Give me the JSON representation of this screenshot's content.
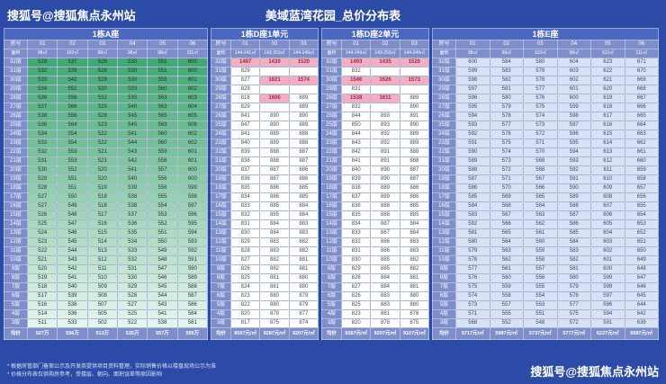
{
  "page": {
    "watermark_top": "搜狐号@搜狐焦点永州站",
    "title": "美域蓝湾花园_总价分布表",
    "watermark_bottom": "搜狐号@搜狐焦点永州站",
    "notes": [
      "* 根据房管部门备案公示及开发商提供项目资料整理，实际销售价格以楼盘现场公示为准",
      "* 价格分布表仅供购房参考，受楼层、朝向、面积误差等原因影响"
    ]
  },
  "theme": {
    "bg": "#2c4ba6",
    "header-bg": "#7d8ecb",
    "title-bar-bg": "#4b67c0",
    "grid-line": "rgba(255,255,255,0.6)"
  },
  "labels": {
    "room": "房号",
    "area": "面积",
    "avg": "均价"
  },
  "floors": [
    "32层",
    "31层",
    "30层",
    "29层",
    "28层",
    "27层",
    "26层",
    "25层",
    "24层",
    "23层",
    "22层",
    "21层",
    "20层",
    "19层",
    "18层",
    "17层",
    "16层",
    "15层",
    "14层",
    "13层",
    "12层",
    "11层",
    "10层",
    "9层",
    "8层",
    "7层",
    "6层",
    "5层",
    "4层",
    "3层"
  ],
  "chart_data": [
    {
      "type": "table",
      "id": "a",
      "title": "1栋A座",
      "columns": [
        "01",
        "02",
        "03",
        "04",
        "05",
        "06"
      ],
      "areas": [
        "98㎡",
        "102㎡",
        "98㎡",
        "98㎡",
        "98㎡",
        "111㎡"
      ],
      "style": "green-scale",
      "scale_from": "#43a873",
      "scale_to": "#e6f5ec",
      "values": [
        [
          529,
          537,
          528,
          530,
          551,
          600
        ],
        [
          532,
          539,
          528,
          530,
          551,
          600
        ],
        [
          533,
          542,
          528,
          530,
          555,
          601
        ],
        [
          534,
          552,
          530,
          533,
          560,
          602
        ],
        [
          536,
          556,
          532,
          535,
          563,
          603
        ],
        [
          537,
          566,
          525,
          540,
          563,
          604
        ],
        [
          538,
          556,
          528,
          545,
          565,
          605
        ],
        [
          536,
          564,
          523,
          545,
          563,
          608
        ],
        [
          534,
          554,
          522,
          541,
          560,
          602
        ],
        [
          533,
          554,
          522,
          544,
          560,
          602
        ],
        [
          532,
          553,
          521,
          543,
          559,
          601
        ],
        [
          531,
          553,
          521,
          542,
          558,
          601
        ],
        [
          530,
          552,
          520,
          541,
          557,
          600
        ],
        [
          529,
          551,
          520,
          540,
          556,
          600
        ],
        [
          528,
          551,
          519,
          539,
          556,
          599
        ],
        [
          527,
          550,
          518,
          538,
          555,
          598
        ],
        [
          527,
          549,
          518,
          538,
          554,
          597
        ],
        [
          526,
          548,
          517,
          537,
          553,
          596
        ],
        [
          525,
          547,
          516,
          536,
          552,
          595
        ],
        [
          524,
          546,
          515,
          535,
          551,
          594
        ],
        [
          523,
          545,
          514,
          534,
          550,
          593
        ],
        [
          522,
          544,
          513,
          533,
          549,
          592
        ],
        [
          521,
          543,
          512,
          532,
          548,
          591
        ],
        [
          520,
          542,
          511,
          531,
          547,
          590
        ],
        [
          519,
          541,
          510,
          530,
          546,
          589
        ],
        [
          518,
          540,
          509,
          529,
          545,
          588
        ],
        [
          517,
          539,
          508,
          528,
          544,
          587
        ],
        [
          516,
          538,
          507,
          527,
          543,
          586
        ],
        [
          514,
          536,
          505,
          525,
          541,
          584
        ],
        [
          511,
          533,
          502,
          522,
          538,
          581
        ]
      ],
      "avg": [
        "527万",
        "556万",
        "513万",
        "535万",
        "557万",
        "595万"
      ]
    },
    {
      "type": "table",
      "id": "d1",
      "title": "1栋D座1单元",
      "columns": [
        "01",
        "02",
        "03"
      ],
      "areas": [
        "144-241㎡",
        "143-253㎡",
        "144-249㎡"
      ],
      "style": "pink-highlight",
      "highlight_threshold": 1000,
      "highlight_color": "#f3aec2",
      "highlight_text_color": "#9c2b4e",
      "values": [
        [
          1487,
          1430,
          1520
        ],
        [
          829,
          "",
          ""
        ],
        [
          827,
          1621,
          1574
        ],
        [
          828,
          "",
          ""
        ],
        [
          818,
          1606,
          889
        ],
        [
          829,
          "",
          889
        ],
        [
          841,
          890,
          890
        ],
        [
          847,
          890,
          889
        ],
        [
          841,
          889,
          888
        ],
        [
          840,
          889,
          888
        ],
        [
          839,
          888,
          887
        ],
        [
          838,
          888,
          887
        ],
        [
          837,
          887,
          886
        ],
        [
          836,
          887,
          886
        ],
        [
          835,
          886,
          885
        ],
        [
          834,
          886,
          885
        ],
        [
          833,
          885,
          884
        ],
        [
          832,
          885,
          884
        ],
        [
          831,
          884,
          883
        ],
        [
          830,
          884,
          883
        ],
        [
          829,
          883,
          882
        ],
        [
          828,
          883,
          882
        ],
        [
          827,
          882,
          881
        ],
        [
          826,
          882,
          881
        ],
        [
          825,
          881,
          880
        ],
        [
          824,
          881,
          880
        ],
        [
          823,
          880,
          879
        ],
        [
          822,
          880,
          879
        ],
        [
          820,
          878,
          877
        ],
        [
          817,
          875,
          874
        ]
      ],
      "avg": [
        "8507元/㎡",
        "9287元/㎡",
        "9207元/㎡"
      ]
    },
    {
      "type": "table",
      "id": "d2",
      "title": "1栋D座2单元",
      "columns": [
        "01",
        "02",
        "03"
      ],
      "areas": [
        "144-249㎡",
        "143-253㎡",
        "144-249㎡"
      ],
      "style": "pink-highlight",
      "highlight_threshold": 1000,
      "highlight_color": "#f3aec2",
      "highlight_text_color": "#9c2b4e",
      "values": [
        [
          1493,
          1435,
          1520
        ],
        [
          832,
          "",
          ""
        ],
        [
          1546,
          1626,
          1573
        ],
        [
          831,
          "",
          ""
        ],
        [
          1538,
          1611,
          889
        ],
        [
          832,
          "",
          890
        ],
        [
          844,
          893,
          891
        ],
        [
          850,
          893,
          890
        ],
        [
          844,
          892,
          889
        ],
        [
          843,
          892,
          889
        ],
        [
          842,
          891,
          888
        ],
        [
          841,
          891,
          888
        ],
        [
          840,
          890,
          887
        ],
        [
          839,
          890,
          887
        ],
        [
          838,
          889,
          886
        ],
        [
          837,
          889,
          886
        ],
        [
          836,
          888,
          885
        ],
        [
          835,
          888,
          885
        ],
        [
          834,
          887,
          884
        ],
        [
          833,
          887,
          884
        ],
        [
          832,
          886,
          883
        ],
        [
          831,
          886,
          883
        ],
        [
          830,
          885,
          882
        ],
        [
          829,
          885,
          882
        ],
        [
          828,
          884,
          881
        ],
        [
          827,
          884,
          881
        ],
        [
          826,
          883,
          880
        ],
        [
          825,
          883,
          880
        ],
        [
          823,
          881,
          878
        ],
        [
          820,
          878,
          875
        ]
      ],
      "avg": [
        "9287元/㎡",
        "9207元/㎡",
        "9107元/㎡"
      ]
    },
    {
      "type": "table",
      "id": "e",
      "title": "1栋E座",
      "columns": [
        "01",
        "02",
        "03",
        "04",
        "05",
        "06"
      ],
      "areas": [
        "98㎡",
        "98㎡",
        "102㎡",
        "98㎡",
        "102㎡",
        "111㎡"
      ],
      "style": "flat",
      "cell_color": "#d8e2f4",
      "cell_text_color": "#3a4a6c",
      "values": [
        [
          600,
          584,
          580,
          604,
          623,
          671
        ],
        [
          599,
          583,
          579,
          603,
          622,
          670
        ],
        [
          598,
          582,
          578,
          602,
          621,
          669
        ],
        [
          597,
          581,
          577,
          601,
          620,
          668
        ],
        [
          596,
          580,
          576,
          600,
          619,
          667
        ],
        [
          595,
          579,
          575,
          599,
          618,
          666
        ],
        [
          594,
          578,
          574,
          598,
          617,
          665
        ],
        [
          593,
          577,
          573,
          597,
          616,
          664
        ],
        [
          592,
          576,
          572,
          596,
          615,
          663
        ],
        [
          591,
          575,
          571,
          595,
          614,
          662
        ],
        [
          590,
          574,
          570,
          594,
          613,
          661
        ],
        [
          589,
          573,
          569,
          593,
          612,
          660
        ],
        [
          588,
          572,
          568,
          592,
          611,
          659
        ],
        [
          587,
          571,
          567,
          591,
          610,
          658
        ],
        [
          586,
          570,
          566,
          590,
          609,
          657
        ],
        [
          585,
          569,
          565,
          589,
          608,
          656
        ],
        [
          584,
          568,
          564,
          588,
          607,
          655
        ],
        [
          583,
          567,
          563,
          587,
          606,
          654
        ],
        [
          582,
          566,
          562,
          586,
          605,
          653
        ],
        [
          581,
          565,
          561,
          585,
          604,
          652
        ],
        [
          580,
          564,
          560,
          584,
          603,
          651
        ],
        [
          579,
          563,
          559,
          583,
          602,
          650
        ],
        [
          578,
          562,
          558,
          582,
          601,
          649
        ],
        [
          577,
          561,
          557,
          581,
          600,
          648
        ],
        [
          576,
          560,
          556,
          580,
          599,
          647
        ],
        [
          575,
          559,
          555,
          579,
          598,
          646
        ],
        [
          574,
          558,
          554,
          578,
          597,
          645
        ],
        [
          573,
          557,
          553,
          577,
          596,
          644
        ],
        [
          571,
          555,
          551,
          575,
          594,
          642
        ],
        [
          568,
          552,
          548,
          572,
          591,
          639
        ]
      ],
      "avg": [
        "5717元/㎡",
        "5987元/㎡",
        "5737元/㎡",
        "5777元/㎡",
        "6227元/㎡",
        "6587元/㎡"
      ]
    }
  ]
}
